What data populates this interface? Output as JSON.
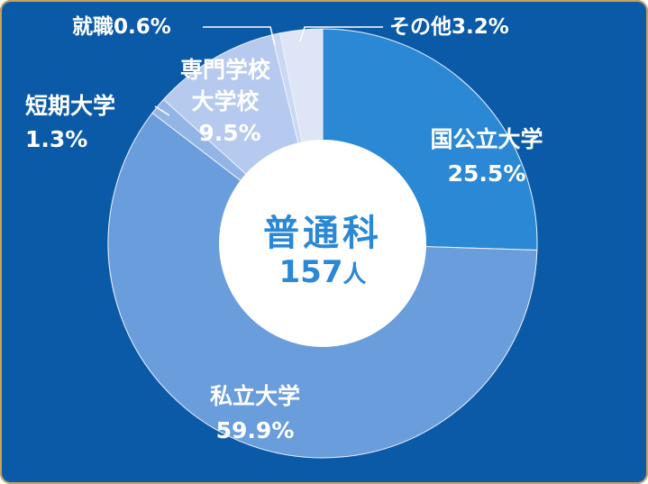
{
  "chart_data": {
    "type": "donut",
    "categories": [
      "国公立大学",
      "私立大学",
      "短期大学",
      "専門学校\n大学校",
      "就職",
      "その他"
    ],
    "values": [
      25.5,
      59.9,
      1.3,
      9.5,
      0.6,
      3.2
    ],
    "value_labels": [
      "25.5%",
      "59.9%",
      "1.3%",
      "9.5%",
      "0.6%",
      "3.2%"
    ],
    "colors": [
      "#2b88d4",
      "#6a9ddb",
      "#93b5e6",
      "#b5caee",
      "#cbd8f2",
      "#dde5f6"
    ],
    "center_title": "普通科",
    "center_value": 157,
    "center_unit": "人"
  }
}
